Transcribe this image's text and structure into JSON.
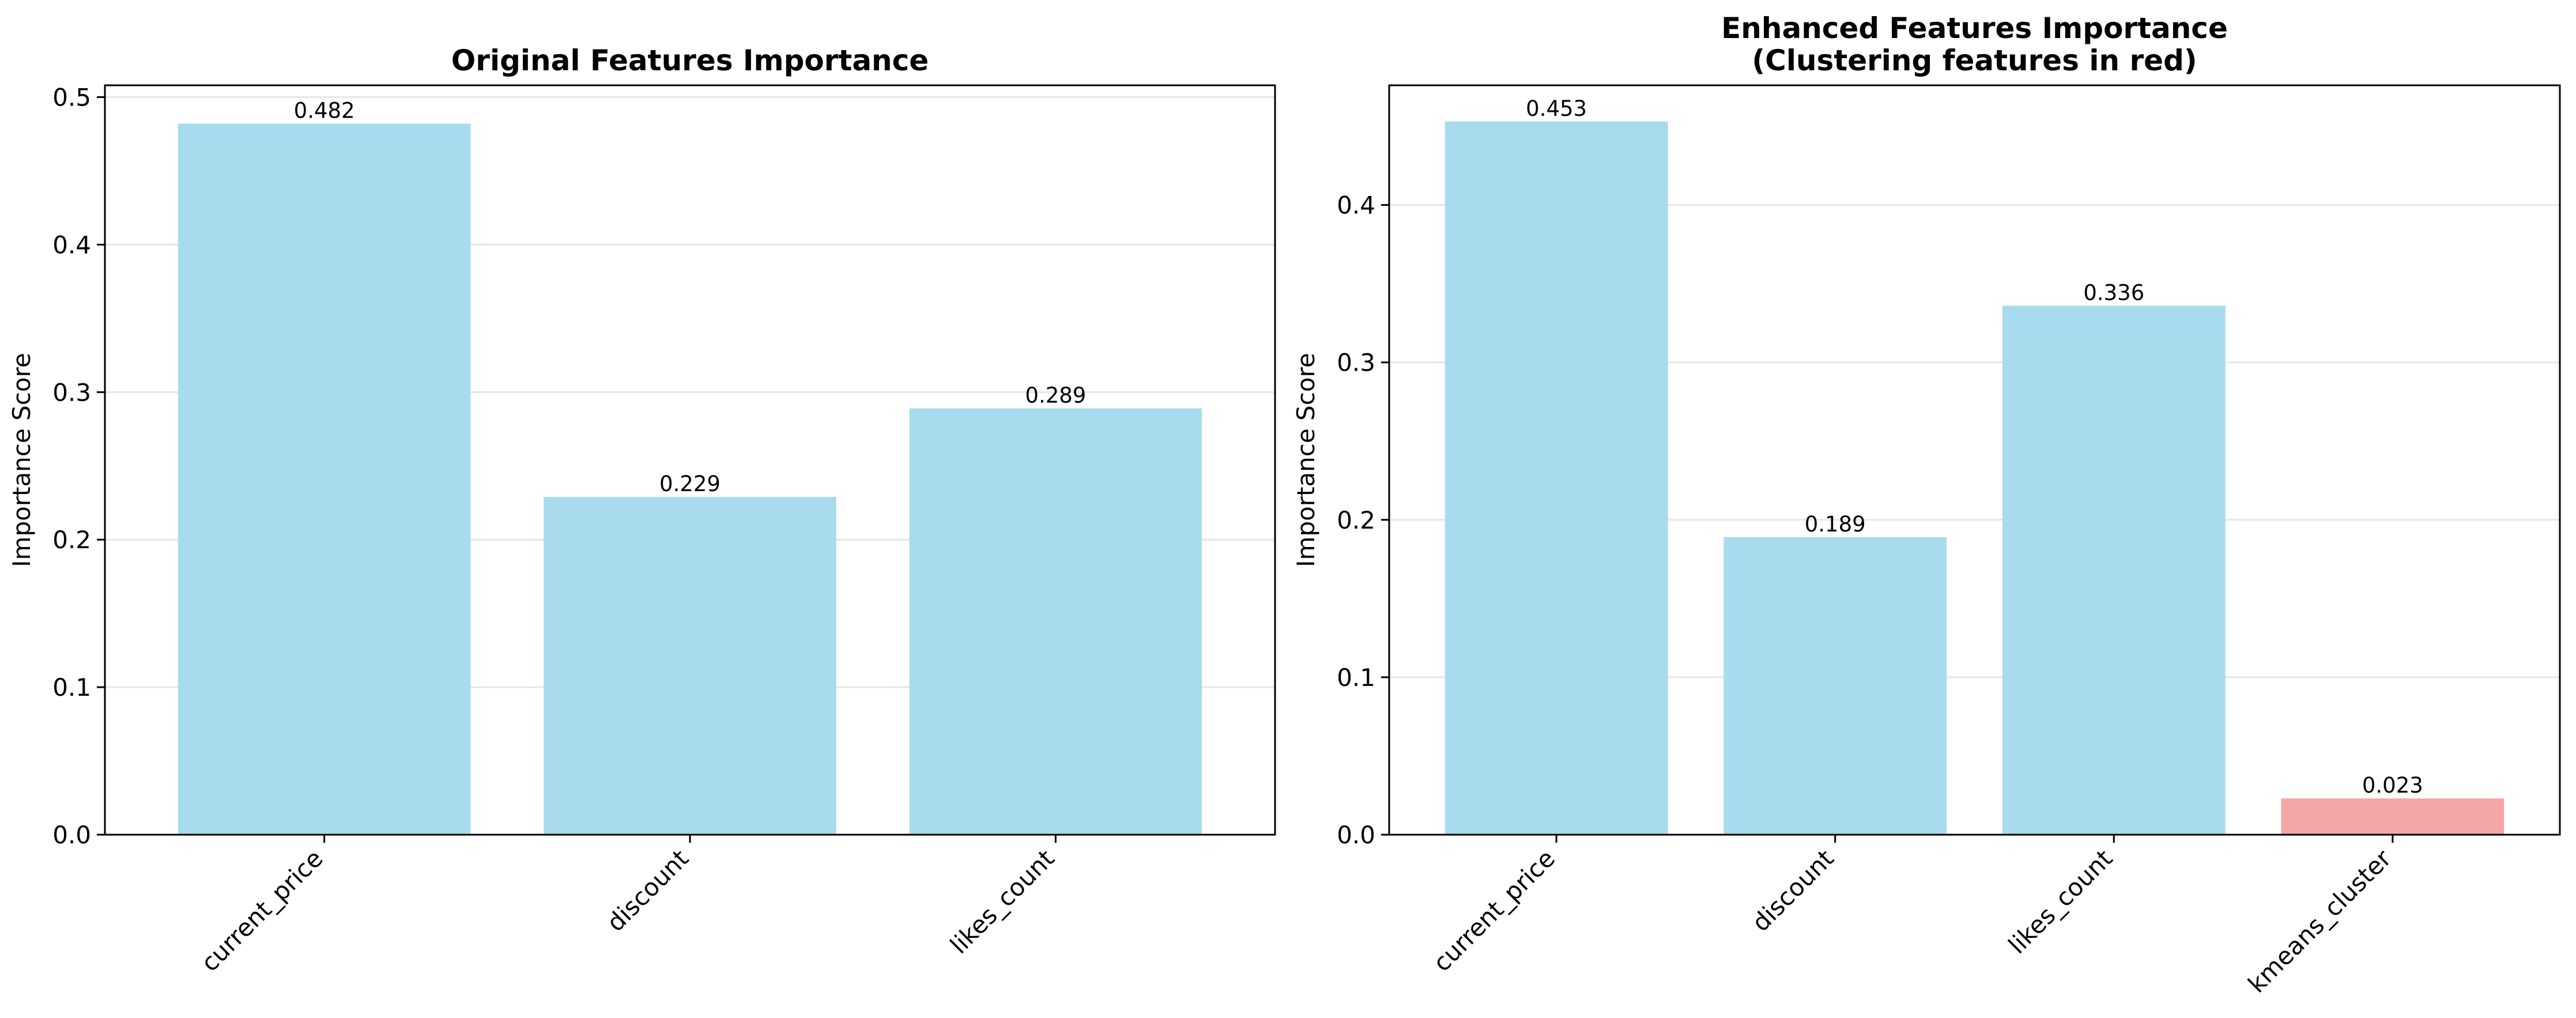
{
  "chart_data": [
    {
      "type": "bar",
      "title_lines": [
        "Original Features Importance"
      ],
      "xlabel": "",
      "ylabel": "Importance Score",
      "categories": [
        "current_price",
        "discount",
        "likes_count"
      ],
      "values": [
        0.482,
        0.229,
        0.289
      ],
      "value_labels": [
        "0.482",
        "0.229",
        "0.289"
      ],
      "bar_colors": [
        "#a8dbee",
        "#a8dbee",
        "#a8dbee"
      ],
      "ylim": [
        0,
        0.508
      ],
      "yticks": [
        0.0,
        0.1,
        0.2,
        0.3,
        0.4,
        0.5
      ],
      "ytick_labels": [
        "0.0",
        "0.1",
        "0.2",
        "0.3",
        "0.4",
        "0.5"
      ],
      "grid": "horizontal",
      "legend": "none"
    },
    {
      "type": "bar",
      "title_lines": [
        "Enhanced Features Importance",
        "(Clustering features in red)"
      ],
      "xlabel": "",
      "ylabel": "Importance Score",
      "categories": [
        "current_price",
        "discount",
        "likes_count",
        "kmeans_cluster"
      ],
      "values": [
        0.453,
        0.189,
        0.336,
        0.023
      ],
      "value_labels": [
        "0.453",
        "0.189",
        "0.336",
        "0.023"
      ],
      "bar_colors": [
        "#a8dbee",
        "#a8dbee",
        "#a8dbee",
        "#f4a6a6"
      ],
      "ylim": [
        0,
        0.476
      ],
      "yticks": [
        0.0,
        0.1,
        0.2,
        0.3,
        0.4
      ],
      "ytick_labels": [
        "0.0",
        "0.1",
        "0.2",
        "0.3",
        "0.4"
      ],
      "grid": "horizontal",
      "legend": "none"
    }
  ],
  "colors": {
    "bar_default": "#a8dbee",
    "bar_cluster": "#f4a6a6",
    "grid": "#e6e6e6",
    "axes": "#000000"
  }
}
